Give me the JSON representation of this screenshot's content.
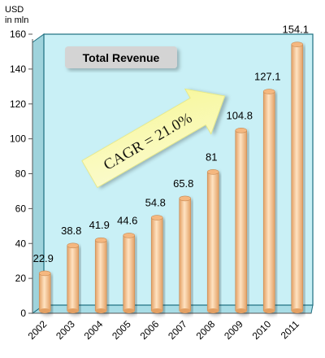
{
  "chart_data": {
    "type": "bar",
    "title": "Total Revenue",
    "unit_label": [
      "USD",
      "in mln"
    ],
    "categories": [
      "2002",
      "2003",
      "2004",
      "2005",
      "2006",
      "2007",
      "2008",
      "2009",
      "2010",
      "2011"
    ],
    "values": [
      22.9,
      38.8,
      41.9,
      44.6,
      54.8,
      65.8,
      81,
      104.8,
      127.1,
      154.1
    ],
    "value_labels": [
      "22.9",
      "38.8",
      "41.9",
      "44.6",
      "54.8",
      "65.8",
      "81",
      "104.8",
      "127.1",
      "154.1"
    ],
    "ylim": [
      0,
      160
    ],
    "yticks": [
      0,
      20,
      40,
      60,
      80,
      100,
      120,
      140,
      160
    ],
    "grid": false,
    "annotation": "CAGR = 21.0%",
    "colors": {
      "plot_area": "#c9f0f6",
      "plot_border": "#1d6f80",
      "bar_light": "#ffe3c2",
      "bar_dark": "#e3a064",
      "arrow": "#f7f79a",
      "title_box": "#d4d4d4"
    }
  }
}
